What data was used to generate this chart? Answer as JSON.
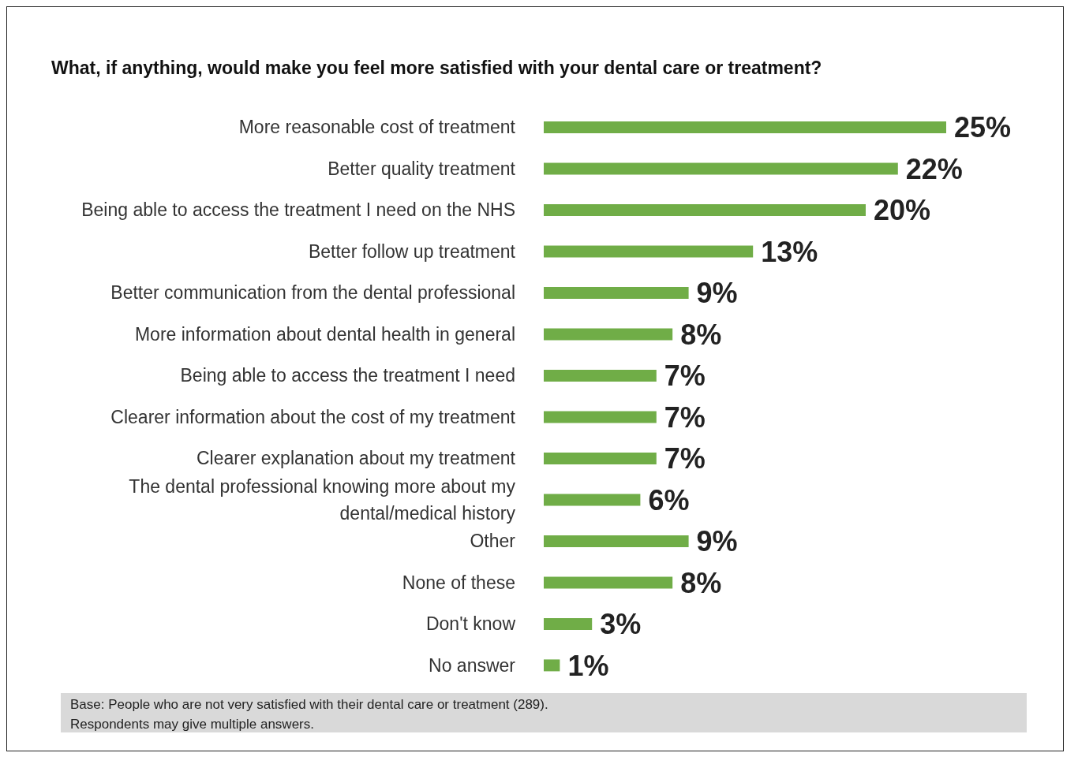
{
  "chart_data": {
    "type": "bar",
    "orientation": "horizontal",
    "title": "What, if anything, would make you feel more satisfied with your dental care or treatment?",
    "categories": [
      "More reasonable cost of treatment",
      "Better quality treatment",
      "Being able to access the treatment I need on the NHS",
      "Better follow up treatment",
      "Better communication from the dental professional",
      "More information about dental health in general",
      "Being able to access the treatment I need",
      "Clearer information about the cost of my treatment",
      "Clearer explanation about my treatment",
      "The dental professional knowing more about my dental/medical history",
      "Other",
      "None of these",
      "Don't know",
      "No answer"
    ],
    "values": [
      25,
      22,
      20,
      13,
      9,
      8,
      7,
      7,
      7,
      6,
      9,
      8,
      3,
      1
    ],
    "value_labels": [
      "25%",
      "22%",
      "20%",
      "13%",
      "9%",
      "8%",
      "7%",
      "7%",
      "7%",
      "6%",
      "9%",
      "8%",
      "3%",
      "1%"
    ],
    "color": "#70ad47",
    "annotations": [
      "Base: People who are not very satisfied with their dental care or treatment (289).",
      "Respondents may give multiple answers."
    ]
  }
}
